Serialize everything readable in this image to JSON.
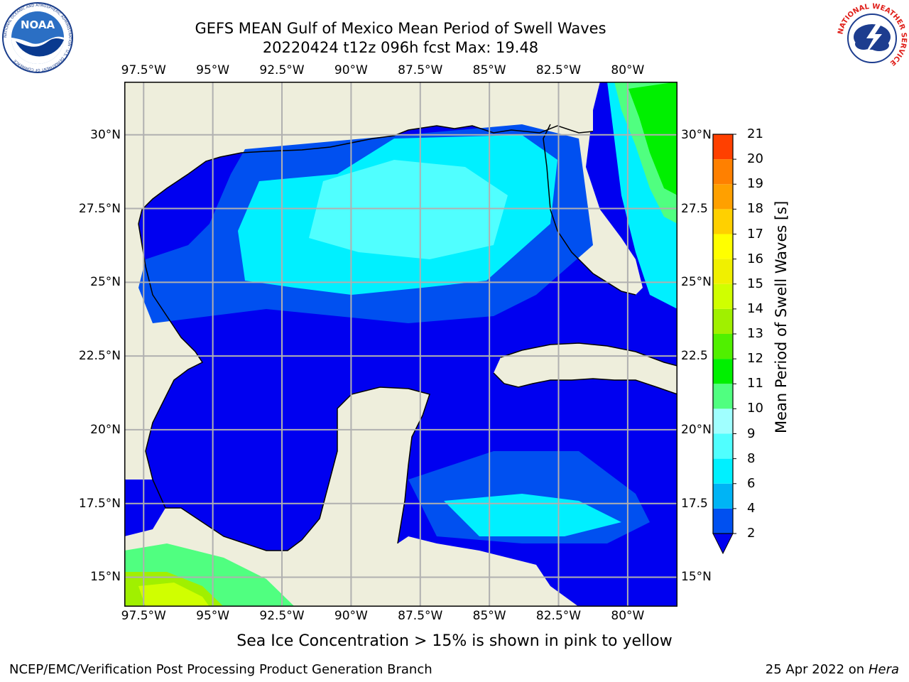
{
  "header": {
    "title_line1": "GEFS MEAN Gulf of Mexico Mean Period of Swell Waves",
    "title_line2": "20220424 t12z 096h fcst   Max: 19.48"
  },
  "logos": {
    "noaa": "NOAA",
    "noaa_ring": "NATIONAL OCEANIC AND ATMOSPHERIC ADMINISTRATION · U.S. DEPARTMENT OF COMMERCE",
    "nws_ring": "NATIONAL WEATHER SERVICE"
  },
  "map": {
    "lon_labels": [
      "97.5°W",
      "95°W",
      "92.5°W",
      "90°W",
      "87.5°W",
      "85°W",
      "82.5°W",
      "80°W"
    ],
    "lat_labels": [
      "30°N",
      "27.5°N",
      "25°N",
      "22.5°N",
      "20°N",
      "17.5°N",
      "15°N"
    ],
    "lat_labels_right": [
      "30°N",
      "27.5",
      "25°N",
      "22.5",
      "20°N",
      "17.5",
      "15°N"
    ],
    "lon_range": [
      -98.2,
      -78.2
    ],
    "lat_range": [
      14.0,
      31.8
    ],
    "colors": {
      "land": "#eeeedc",
      "ocean_deep": "#0000f0",
      "grid": "#b0b0b0"
    }
  },
  "colorbar": {
    "title": "Mean Period of Swell Waves [s]",
    "ticks": [
      "2",
      "4",
      "6",
      "8",
      "9",
      "10",
      "11",
      "12",
      "13",
      "14",
      "15",
      "16",
      "17",
      "18",
      "19",
      "20",
      "21"
    ],
    "colors": [
      "#0050f0",
      "#00b4f5",
      "#00f0ff",
      "#50ffff",
      "#a0ffff",
      "#50ff80",
      "#00f000",
      "#50f000",
      "#a0f000",
      "#d0ff00",
      "#f0f000",
      "#ffff00",
      "#ffd000",
      "#ffa000",
      "#ff8000",
      "#ff4000",
      "#ff0000"
    ],
    "extend_color": "#0000f0"
  },
  "note": "Sea Ice Concentration > 15% is shown in pink to yellow",
  "footer": {
    "left": "NCEP/EMC/Verification Post Processing Product Generation Branch",
    "date": "25 Apr 2022 on ",
    "machine": "Hera"
  }
}
